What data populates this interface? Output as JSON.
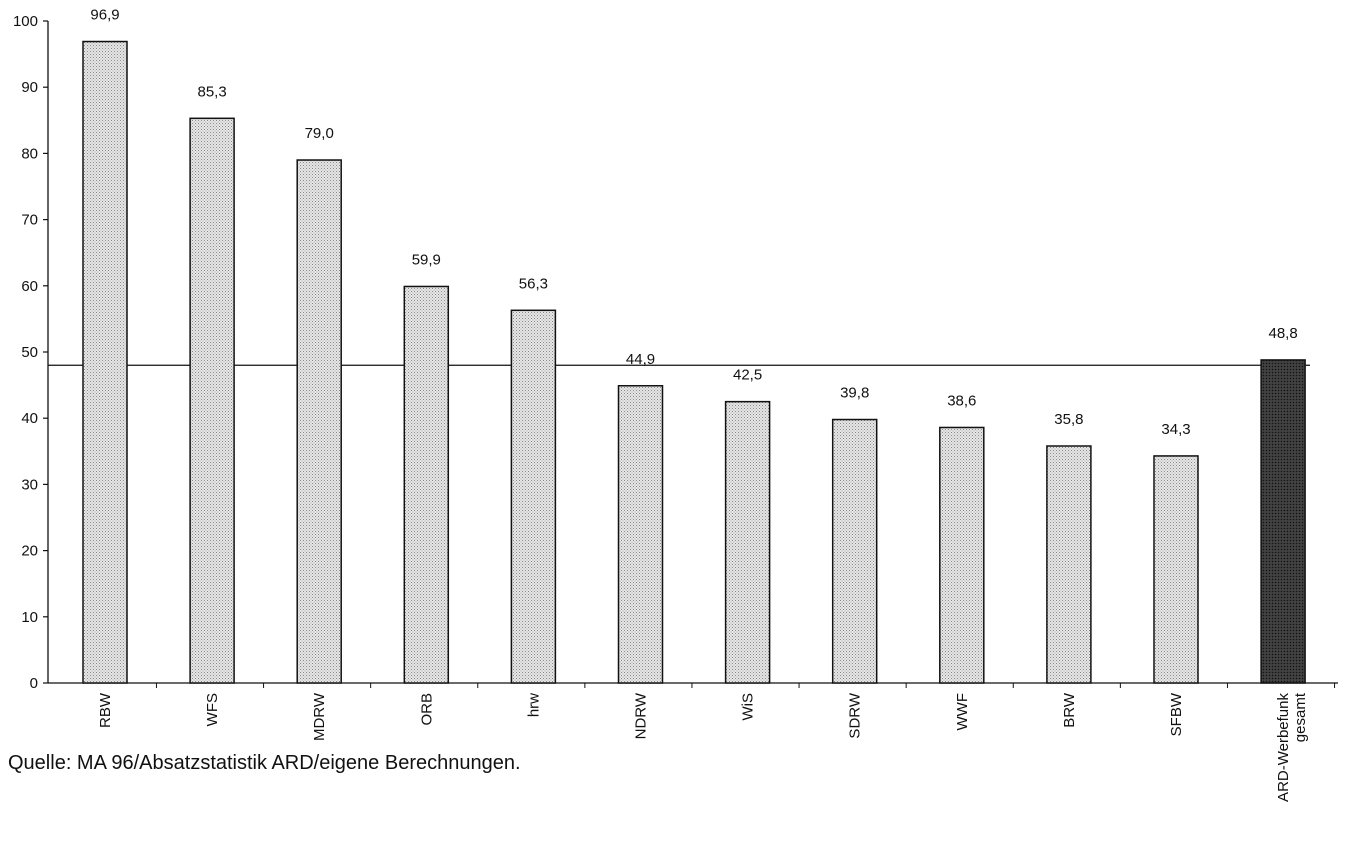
{
  "chart_data": {
    "type": "bar",
    "categories": [
      "RBW",
      "WFS",
      "MDRW",
      "ORB",
      "hrw",
      "NDRW",
      "WiS",
      "SDRW",
      "WWF",
      "BRW",
      "SFBW",
      "ARD-Werbefunk gesamt"
    ],
    "values": [
      96.9,
      85.3,
      79.0,
      59.9,
      56.3,
      44.9,
      42.5,
      39.8,
      38.6,
      35.8,
      34.3,
      48.8
    ],
    "value_labels": [
      "96,9",
      "85,3",
      "79,0",
      "59,9",
      "56,3",
      "44,9",
      "42,5",
      "39,8",
      "38,6",
      "35,8",
      "34,3",
      "48,8"
    ],
    "reference_line": 48,
    "highlight_index": 11,
    "ylim": [
      0,
      100
    ],
    "yticks": [
      0,
      10,
      20,
      30,
      40,
      50,
      60,
      70,
      80,
      90,
      100
    ],
    "title": "",
    "xlabel": "",
    "ylabel": "",
    "colors": {
      "bar": "#d9d9d9",
      "highlight": "#2e2e2e",
      "stroke": "#111111"
    }
  },
  "source_note": "Quelle: MA 96/Absatzstatistik ARD/eigene Berechnungen."
}
